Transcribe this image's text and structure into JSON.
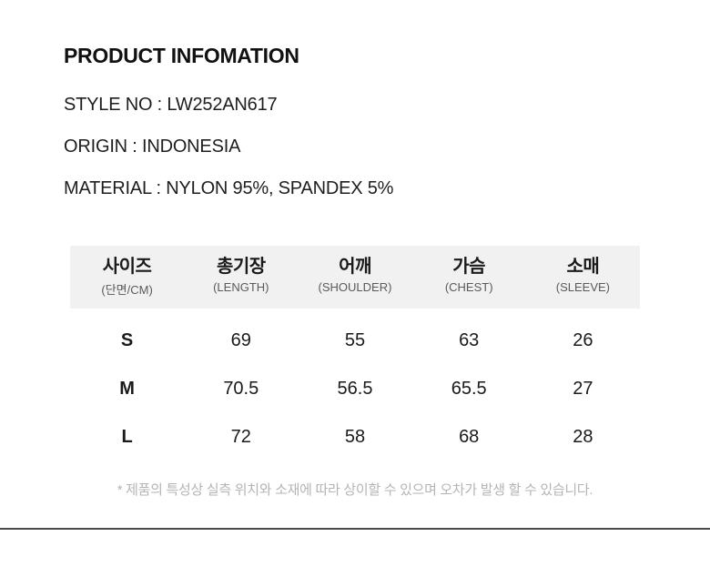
{
  "title": "PRODUCT INFOMATION",
  "details": {
    "style_no": "STYLE NO : LW252AN617",
    "origin": "ORIGIN : INDONESIA",
    "material": "MATERIAL : NYLON 95%, SPANDEX 5%"
  },
  "size_table": {
    "columns": [
      {
        "ko": "사이즈",
        "sub": "(단면/CM)"
      },
      {
        "ko": "총기장",
        "sub": "(LENGTH)"
      },
      {
        "ko": "어깨",
        "sub": "(SHOULDER)"
      },
      {
        "ko": "가슴",
        "sub": "(CHEST)"
      },
      {
        "ko": "소매",
        "sub": "(SLEEVE)"
      }
    ],
    "rows": [
      {
        "size": "S",
        "values": [
          "69",
          "55",
          "63",
          "26"
        ]
      },
      {
        "size": "M",
        "values": [
          "70.5",
          "56.5",
          "65.5",
          "27"
        ]
      },
      {
        "size": "L",
        "values": [
          "72",
          "58",
          "68",
          "28"
        ]
      }
    ]
  },
  "footnote": "* 제품의 특성상 실측 위치와 소재에 따라 상이할 수 있으며 오차가 발생 할 수 있습니다.",
  "colors": {
    "header_bg": "#f1f1f1",
    "text": "#1a1a1a",
    "sub_label": "#5a5a5a",
    "footnote": "#b4b4b4",
    "divider": "#4a4a4a"
  }
}
